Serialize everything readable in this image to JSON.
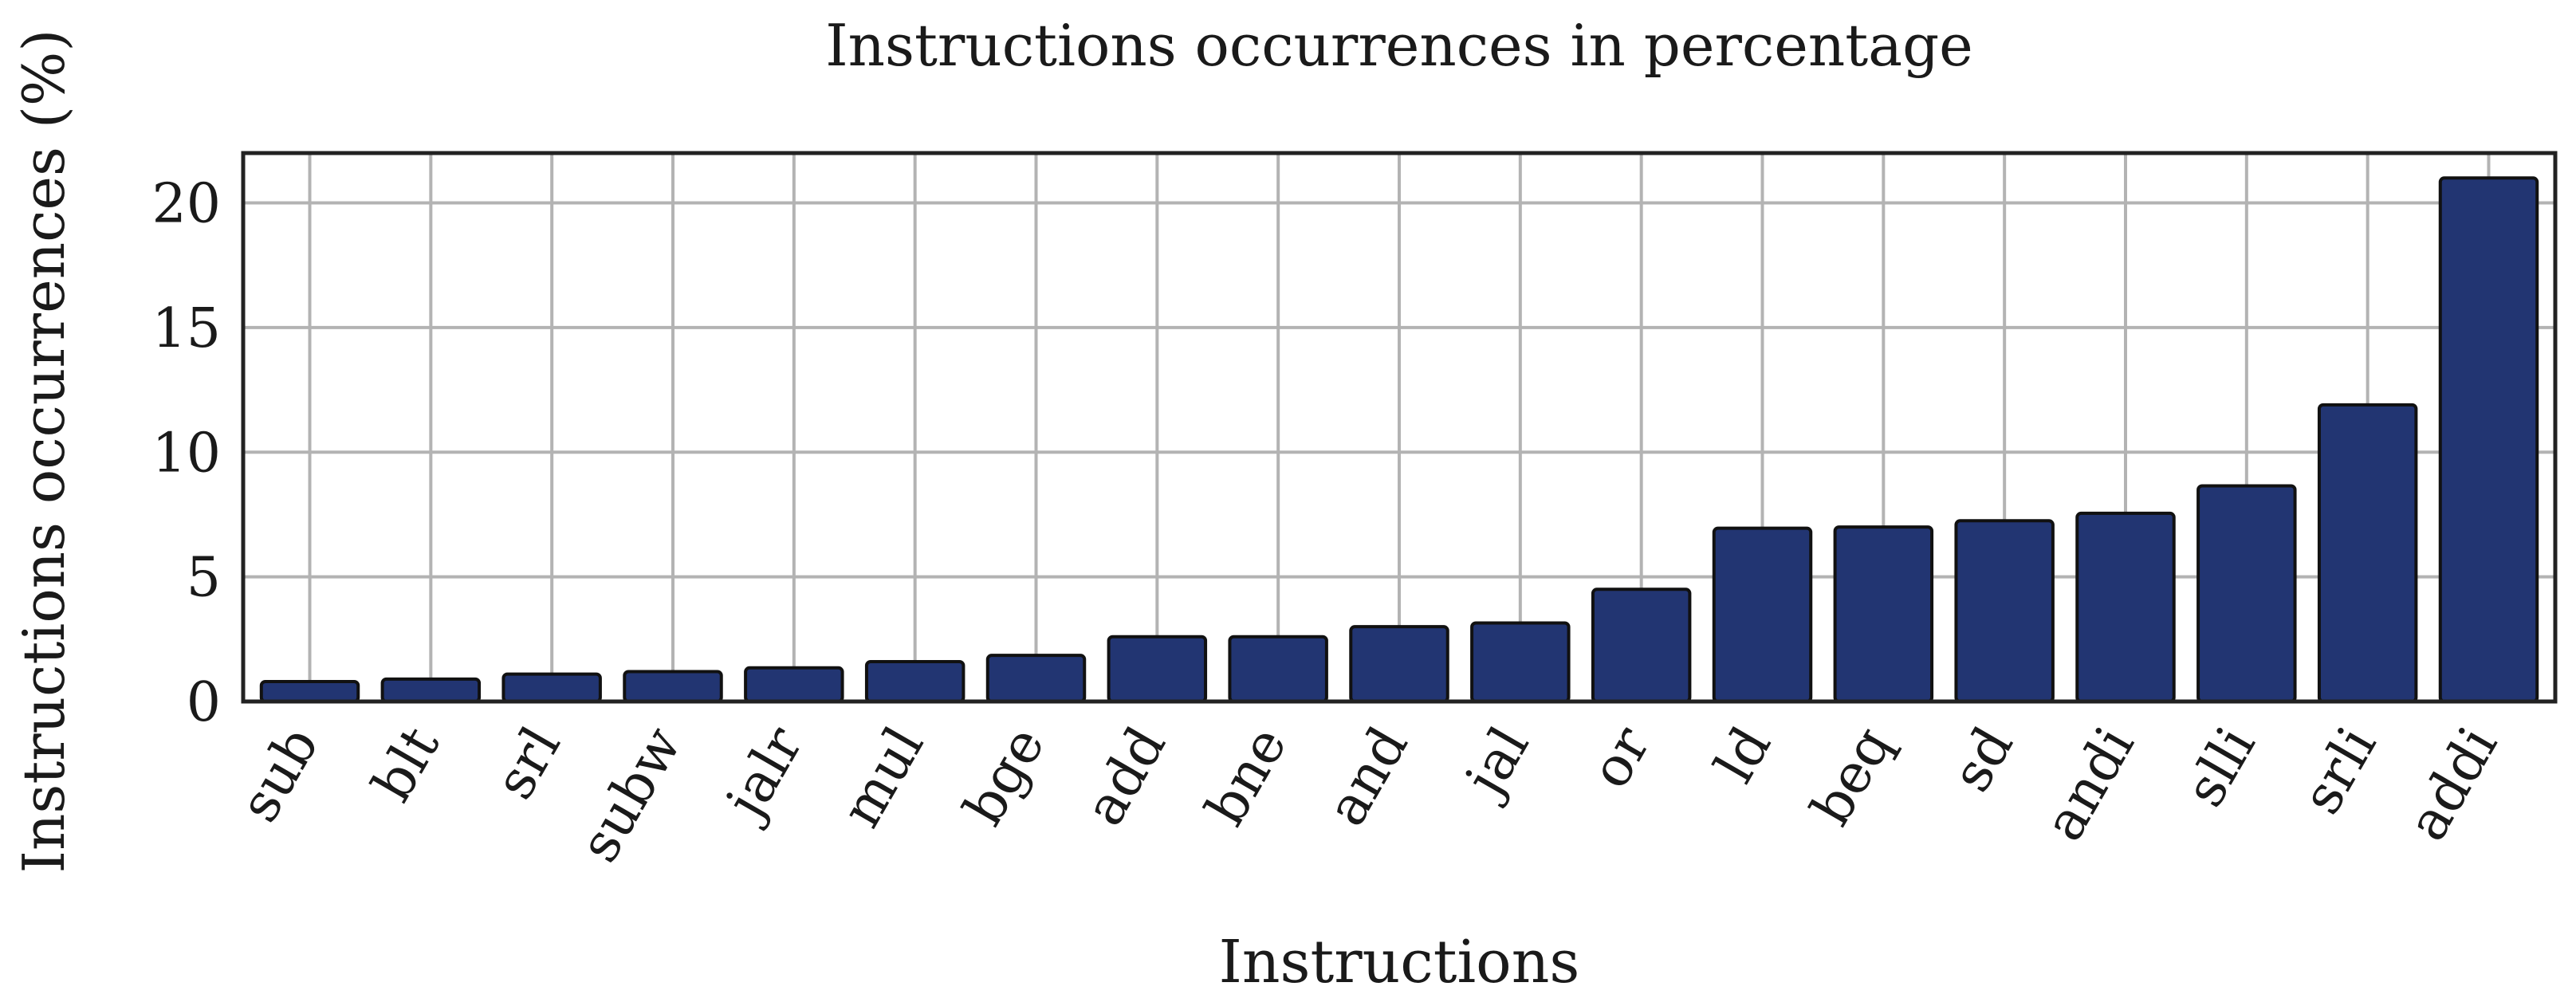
{
  "chart_data": {
    "type": "bar",
    "title": "Instructions occurrences in percentage",
    "xlabel": "Instructions",
    "ylabel": "Instructions occurrences (%)",
    "categories": [
      "sub",
      "blt",
      "srl",
      "subw",
      "jalr",
      "mul",
      "bge",
      "add",
      "bne",
      "and",
      "jal",
      "or",
      "ld",
      "beq",
      "sd",
      "andi",
      "slli",
      "srli",
      "addi"
    ],
    "values": [
      0.8,
      0.9,
      1.1,
      1.2,
      1.35,
      1.6,
      1.85,
      2.6,
      2.6,
      3.0,
      3.15,
      4.5,
      6.95,
      7.0,
      7.25,
      7.55,
      8.65,
      11.9,
      21.0
    ],
    "ylim": [
      0,
      22
    ],
    "yticks": [
      0,
      5,
      10,
      15,
      20
    ],
    "grid": true,
    "legend": "none",
    "colors": {
      "bar": "#223572",
      "grid": "#b3b3b3",
      "frame": "#222222"
    }
  }
}
